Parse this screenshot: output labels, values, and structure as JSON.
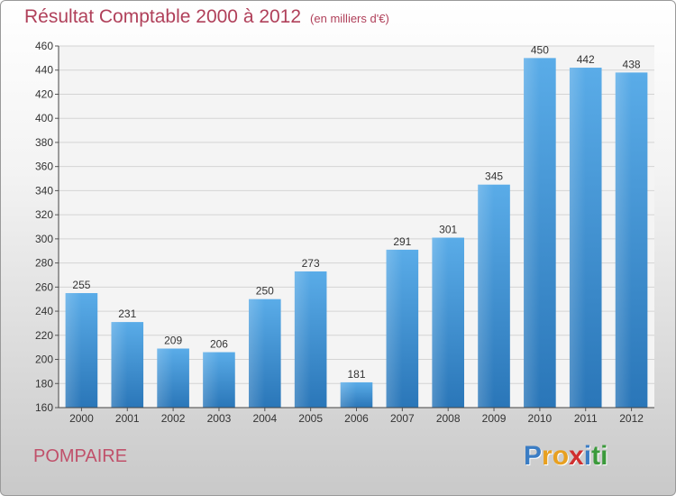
{
  "title": "Résultat Comptable 2000 à 2012",
  "subtitle": "(en milliers d'€)",
  "commune": "POMPAIRE",
  "logo": {
    "letters": [
      "P",
      "r",
      "o",
      "x",
      "i",
      "t",
      "i"
    ],
    "colors": [
      "#3b7dc4",
      "#e8a020",
      "#e8a020",
      "#d03030",
      "#3b7dc4",
      "#3b9a3b",
      "#3b9a3b"
    ]
  },
  "chart_data": {
    "type": "bar",
    "categories": [
      "2000",
      "2001",
      "2002",
      "2003",
      "2004",
      "2005",
      "2006",
      "2007",
      "2008",
      "2009",
      "2010",
      "2011",
      "2012"
    ],
    "values": [
      255,
      231,
      209,
      206,
      250,
      273,
      181,
      291,
      301,
      345,
      450,
      442,
      438
    ],
    "ylim": [
      160,
      460
    ],
    "yticks": [
      160,
      180,
      200,
      220,
      240,
      260,
      280,
      300,
      320,
      340,
      360,
      380,
      400,
      420,
      440,
      460
    ],
    "grid": true,
    "bar_color": "#3a8ed6"
  }
}
